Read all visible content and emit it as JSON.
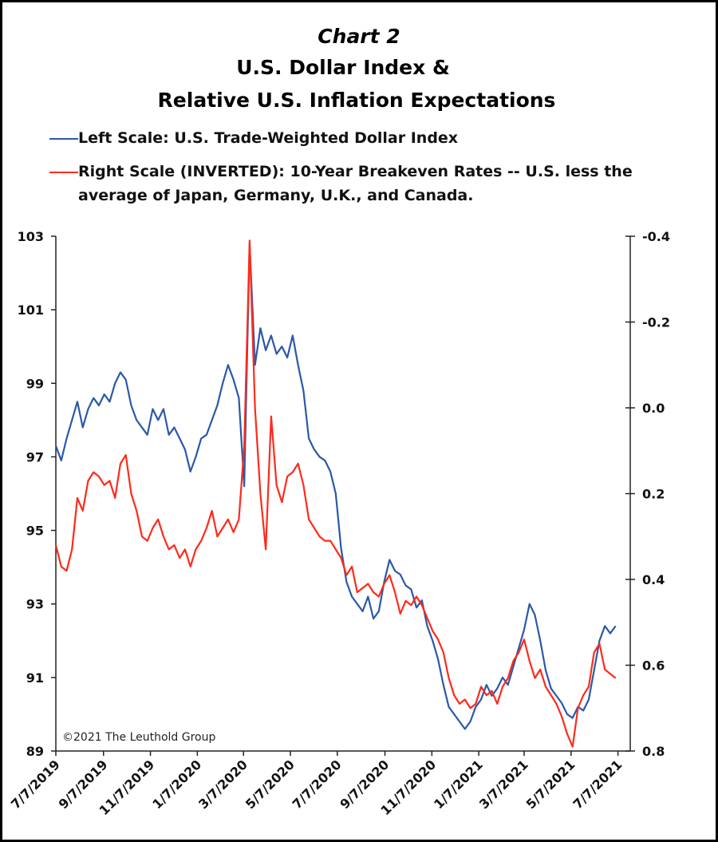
{
  "chart_data": {
    "type": "line",
    "title": "Chart 2",
    "subtitle": [
      "U.S. Dollar Index &",
      "Relative U.S. Inflation Expectations"
    ],
    "annotation": "©2021 The Leuthold Group",
    "x": [
      "7/7/2019",
      "7/14/2019",
      "7/21/2019",
      "7/28/2019",
      "8/4/2019",
      "8/11/2019",
      "8/18/2019",
      "8/25/2019",
      "9/1/2019",
      "9/8/2019",
      "9/15/2019",
      "9/22/2019",
      "9/29/2019",
      "10/6/2019",
      "10/13/2019",
      "10/20/2019",
      "10/27/2019",
      "11/3/2019",
      "11/10/2019",
      "11/17/2019",
      "11/24/2019",
      "12/1/2019",
      "12/8/2019",
      "12/15/2019",
      "12/22/2019",
      "12/29/2019",
      "1/5/2020",
      "1/12/2020",
      "1/19/2020",
      "1/26/2020",
      "2/2/2020",
      "2/9/2020",
      "2/16/2020",
      "2/23/2020",
      "3/1/2020",
      "3/8/2020",
      "3/15/2020",
      "3/22/2020",
      "3/29/2020",
      "4/5/2020",
      "4/12/2020",
      "4/19/2020",
      "4/26/2020",
      "5/3/2020",
      "5/10/2020",
      "5/17/2020",
      "5/24/2020",
      "5/31/2020",
      "6/7/2020",
      "6/14/2020",
      "6/21/2020",
      "6/28/2020",
      "7/5/2020",
      "7/12/2020",
      "7/19/2020",
      "7/26/2020",
      "8/2/2020",
      "8/9/2020",
      "8/16/2020",
      "8/23/2020",
      "8/30/2020",
      "9/6/2020",
      "9/13/2020",
      "9/20/2020",
      "9/27/2020",
      "10/4/2020",
      "10/11/2020",
      "10/18/2020",
      "10/25/2020",
      "11/1/2020",
      "11/8/2020",
      "11/15/2020",
      "11/22/2020",
      "11/29/2020",
      "12/6/2020",
      "12/13/2020",
      "12/20/2020",
      "12/27/2020",
      "1/3/2021",
      "1/10/2021",
      "1/17/2021",
      "1/24/2021",
      "1/31/2021",
      "2/7/2021",
      "2/14/2021",
      "2/21/2021",
      "2/28/2021",
      "3/7/2021",
      "3/14/2021",
      "3/21/2021",
      "3/28/2021",
      "4/4/2021",
      "4/11/2021",
      "4/18/2021",
      "4/25/2021",
      "5/2/2021",
      "5/9/2021",
      "5/16/2021",
      "5/23/2021",
      "5/30/2021",
      "6/6/2021",
      "6/13/2021",
      "6/20/2021",
      "6/27/2021",
      "7/4/2021"
    ],
    "xlim": [
      "7/7/2019",
      "7/23/2021"
    ],
    "xticks": [
      "7/7/2019",
      "9/7/2019",
      "11/7/2019",
      "1/7/2020",
      "3/7/2020",
      "5/7/2020",
      "7/7/2020",
      "9/7/2020",
      "11/7/2020",
      "1/7/2021",
      "3/7/2021",
      "5/7/2021",
      "7/7/2021"
    ],
    "ylim": [
      89,
      103
    ],
    "yticks": [
      89,
      91,
      93,
      95,
      97,
      99,
      101,
      103
    ],
    "y2lim": [
      -0.4,
      0.8
    ],
    "y2_inverted": true,
    "y2ticks": [
      -0.4,
      -0.2,
      {
        "value": 0,
        "label": "0.0"
      },
      0.2,
      0.4,
      0.6,
      0.8
    ],
    "series": [
      {
        "name": "Left Scale: U.S. Trade-Weighted Dollar Index",
        "color": "#2b58a8",
        "axis": "y",
        "values": [
          97.3,
          96.9,
          97.5,
          98.0,
          98.5,
          97.8,
          98.3,
          98.6,
          98.4,
          98.7,
          98.5,
          99.0,
          99.3,
          99.1,
          98.4,
          98.0,
          97.8,
          97.6,
          98.3,
          98.0,
          98.3,
          97.6,
          97.8,
          97.5,
          97.2,
          96.6,
          97.0,
          97.5,
          97.6,
          98.0,
          98.4,
          99.0,
          99.5,
          99.1,
          98.6,
          96.2,
          102.8,
          99.5,
          100.5,
          99.9,
          100.3,
          99.8,
          100.0,
          99.7,
          100.3,
          99.5,
          98.8,
          97.5,
          97.2,
          97.0,
          96.9,
          96.6,
          96.0,
          94.5,
          93.6,
          93.2,
          93.0,
          92.8,
          93.2,
          92.6,
          92.8,
          93.6,
          94.2,
          93.9,
          93.8,
          93.5,
          93.4,
          92.9,
          93.1,
          92.4,
          92.0,
          91.5,
          90.8,
          90.2,
          90.0,
          89.8,
          89.6,
          89.8,
          90.2,
          90.4,
          90.8,
          90.5,
          90.7,
          91.0,
          90.8,
          91.3,
          91.8,
          92.3,
          93.0,
          92.7,
          92.0,
          91.2,
          90.7,
          90.5,
          90.3,
          90.0,
          89.9,
          90.2,
          90.1,
          90.4,
          91.2,
          92.0,
          92.4,
          92.2,
          92.4
        ]
      },
      {
        "name": "Right Scale (INVERTED): 10-Year Breakeven Rates -- U.S. less the average of Japan, Germany, U.K., and Canada.",
        "color": "#ff2a1a",
        "axis": "y2",
        "values": [
          0.32,
          0.37,
          0.38,
          0.33,
          0.21,
          0.24,
          0.17,
          0.15,
          0.16,
          0.18,
          0.17,
          0.21,
          0.13,
          0.11,
          0.2,
          0.24,
          0.3,
          0.31,
          0.28,
          0.26,
          0.3,
          0.33,
          0.32,
          0.35,
          0.33,
          0.37,
          0.33,
          0.31,
          0.28,
          0.24,
          0.3,
          0.28,
          0.26,
          0.29,
          0.26,
          0.09,
          -0.39,
          0.0,
          0.2,
          0.33,
          0.02,
          0.18,
          0.22,
          0.16,
          0.15,
          0.13,
          0.18,
          0.26,
          0.28,
          0.3,
          0.31,
          0.31,
          0.33,
          0.35,
          0.39,
          0.37,
          0.43,
          0.42,
          0.41,
          0.43,
          0.44,
          0.41,
          0.39,
          0.43,
          0.48,
          0.45,
          0.46,
          0.44,
          0.46,
          0.49,
          0.52,
          0.54,
          0.57,
          0.63,
          0.67,
          0.69,
          0.68,
          0.7,
          0.69,
          0.65,
          0.67,
          0.66,
          0.69,
          0.65,
          0.63,
          0.59,
          0.57,
          0.54,
          0.59,
          0.63,
          0.61,
          0.65,
          0.67,
          0.69,
          0.72,
          0.76,
          0.79,
          0.7,
          0.67,
          0.65,
          0.57,
          0.55,
          0.61,
          0.62,
          0.63
        ]
      }
    ]
  }
}
